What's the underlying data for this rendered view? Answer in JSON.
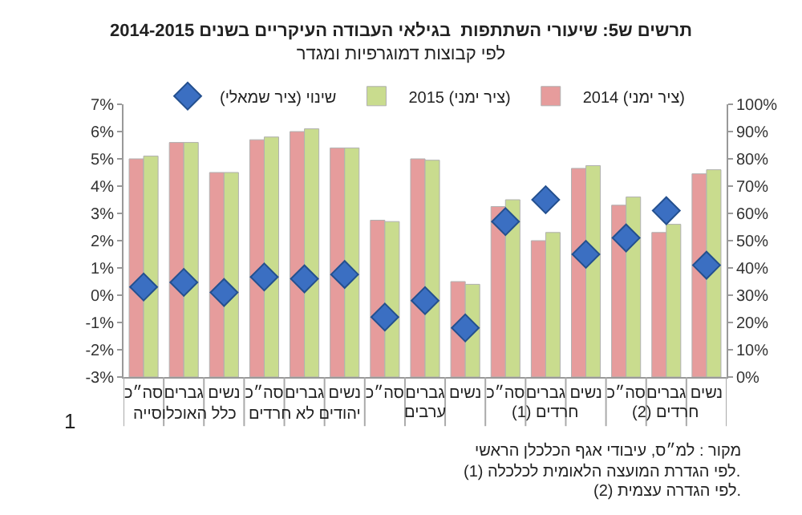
{
  "chart_data": {
    "type": "bar",
    "title": "תרשים ש5: שיעורי השתתפות  בגילאי העבודה העיקריים בשנים 2014-2015",
    "subtitle": "לפי קבוצות דמוגרפיות ומגדר",
    "categories": [
      "סה״כ",
      "גברים",
      "נשים",
      "סה״כ",
      "גברים",
      "נשים",
      "סה״כ",
      "גברים",
      "נשים",
      "סה״כ",
      "גברים",
      "נשים",
      "סה״כ",
      "גברים",
      "נשים"
    ],
    "series": [
      {
        "name": "2014 (ציר ימני)",
        "color": "#e69c9c",
        "axis": "y2",
        "values": [
          80,
          86,
          75,
          87,
          90,
          84,
          57.5,
          80,
          35,
          62.5,
          50,
          76.5,
          63,
          53,
          74.5
        ]
      },
      {
        "name": "2015 (ציר ימני)",
        "color": "#c9dc8e",
        "axis": "y2",
        "values": [
          81,
          86,
          75,
          88,
          91,
          84,
          57,
          79.5,
          34,
          65,
          53,
          77.5,
          66,
          56,
          76
        ]
      },
      {
        "name": "שינוי (ציר שמאלי)",
        "color": "#3b6fc2",
        "type": "scatter",
        "marker": "diamond",
        "values": [
          0.3,
          0.47,
          0.1,
          0.67,
          0.6,
          0.76,
          -0.8,
          -0.2,
          -1.2,
          2.7,
          3.5,
          1.5,
          2.1,
          3.1,
          1.1
        ]
      }
    ],
    "ylim": [
      -3,
      7
    ],
    "yticks": [
      {
        "value": -3,
        "label": "-3%"
      },
      {
        "value": -2,
        "label": "-2%"
      },
      {
        "value": -1,
        "label": "-1%"
      },
      {
        "value": 0,
        "label": "0%"
      },
      {
        "value": 1,
        "label": "1%"
      },
      {
        "value": 2,
        "label": "2%"
      },
      {
        "value": 3,
        "label": "3%"
      },
      {
        "value": 4,
        "label": "4%"
      },
      {
        "value": 5,
        "label": "5%"
      },
      {
        "value": 6,
        "label": "6%"
      },
      {
        "value": 7,
        "label": "7%"
      }
    ],
    "y2lim": [
      0,
      100
    ],
    "y2ticks": [
      {
        "value": 0,
        "label": "0%"
      },
      {
        "value": 10,
        "label": "10%"
      },
      {
        "value": 20,
        "label": "20%"
      },
      {
        "value": 30,
        "label": "30%"
      },
      {
        "value": 40,
        "label": "40%"
      },
      {
        "value": 50,
        "label": "50%"
      },
      {
        "value": 60,
        "label": "60%"
      },
      {
        "value": 70,
        "label": "70%"
      },
      {
        "value": 80,
        "label": "80%"
      },
      {
        "value": 90,
        "label": "90%"
      },
      {
        "value": 100,
        "label": "100%"
      }
    ],
    "legend": "top",
    "annotations": [
      "כלל האוכלוסייה",
      "יהודים לא חרדים",
      "ערבים",
      "חרדים (1)",
      "חרדים (2)",
      "1",
      "מקור : למ״ס, עיבודי אגף הכלכלן הראשי",
      "(1) לפי הגדרת המועצה הלאומית לכלכלה.",
      "(2) לפי הגדרה עצמית."
    ]
  }
}
